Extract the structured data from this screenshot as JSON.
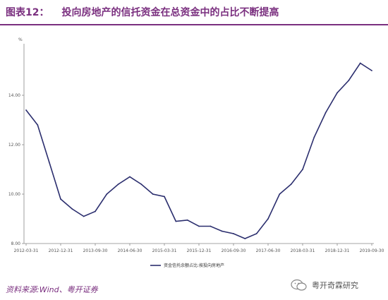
{
  "header": {
    "figure_label": "图表12：",
    "title": "投向房地产的信托资金在总资金中的占比不断提高"
  },
  "chart_data": {
    "type": "line",
    "ylabel": "%",
    "ylim": [
      8,
      16
    ],
    "yticks": [
      8.0,
      10.0,
      12.0,
      14.0
    ],
    "ytick_labels": [
      "8.00",
      "10.00",
      "12.00",
      "14.00"
    ],
    "xtick_labels": [
      "2012-03-31",
      "2012-12-31",
      "2013-09-30",
      "2014-06-30",
      "2015-03-31",
      "2015-12-31",
      "2016-09-30",
      "2017-06-30",
      "2018-03-31",
      "2018-12-31",
      "2019-09-30"
    ],
    "legend_position": "bottom",
    "series": [
      {
        "name": "资金信托余额占比:按投向房地产",
        "color": "#2b2e6e",
        "values": [
          13.4,
          12.8,
          11.3,
          9.8,
          9.4,
          9.1,
          9.3,
          10.0,
          10.4,
          10.7,
          10.4,
          10.0,
          9.9,
          8.9,
          8.95,
          8.7,
          8.7,
          8.5,
          8.4,
          8.2,
          8.4,
          9.0,
          10.0,
          10.4,
          11.0,
          12.3,
          13.3,
          14.1,
          14.6,
          15.3,
          15.0
        ]
      }
    ]
  },
  "footer": {
    "source": "资料来源:Wind、粤开证券",
    "watermark": "粤开奇霖研究"
  },
  "colors": {
    "accent": "#7a2f7f",
    "line": "#2b2e6e"
  }
}
